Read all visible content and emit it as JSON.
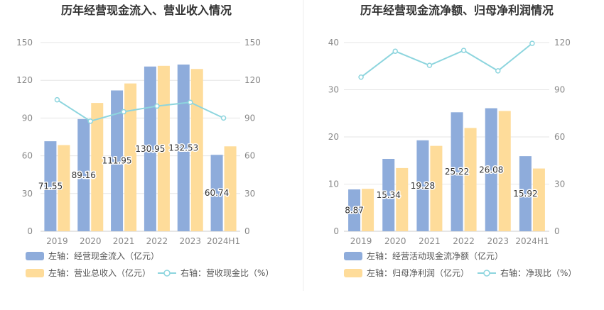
{
  "chart_data": [
    {
      "type": "bar",
      "title": "历年经营现金流入、营业收入情况",
      "categories": [
        "2019",
        "2020",
        "2021",
        "2022",
        "2023",
        "2024H1"
      ],
      "left_axis": {
        "ylim": [
          0,
          150
        ],
        "ticks": [
          0,
          30,
          60,
          90,
          120,
          150
        ]
      },
      "right_axis": {
        "ylim": [
          0,
          150
        ],
        "ticks": [
          0,
          30,
          60,
          90,
          120,
          150
        ]
      },
      "grid": true,
      "legend_position": "bottom",
      "series": [
        {
          "name": "左轴：经营现金流入（亿元）",
          "type": "bar",
          "axis": "left",
          "color": "#8eacdb",
          "values": [
            71.55,
            89.16,
            111.95,
            130.95,
            132.53,
            60.74
          ],
          "labels": [
            "71.55",
            "89.16",
            "111.95",
            "130.95",
            "132.53",
            "60.74"
          ]
        },
        {
          "name": "左轴：营业总收入（亿元）",
          "type": "bar",
          "axis": "left",
          "color": "#fedc9a",
          "values": [
            68.5,
            102.0,
            117.5,
            131.5,
            129.0,
            67.5
          ]
        },
        {
          "name": "右轴：营收现金比（%）",
          "type": "line",
          "axis": "right",
          "color": "#8dd5de",
          "values": [
            104.5,
            87.5,
            95.0,
            99.5,
            102.5,
            90.0
          ]
        }
      ]
    },
    {
      "type": "bar",
      "title": "历年经营现金流净额、归母净利润情况",
      "categories": [
        "2019",
        "2020",
        "2021",
        "2022",
        "2023",
        "2024H1"
      ],
      "left_axis": {
        "ylim": [
          0,
          40
        ],
        "ticks": [
          0,
          10,
          20,
          30,
          40
        ]
      },
      "right_axis": {
        "ylim": [
          0,
          120
        ],
        "ticks": [
          0,
          30,
          60,
          90,
          120
        ]
      },
      "grid": true,
      "legend_position": "bottom",
      "series": [
        {
          "name": "左轴：经营活动现金流净额（亿元）",
          "type": "bar",
          "axis": "left",
          "color": "#8eacdb",
          "values": [
            8.87,
            15.34,
            19.28,
            25.22,
            26.08,
            15.92
          ],
          "labels": [
            "8.87",
            "15.34",
            "19.28",
            "25.22",
            "26.08",
            "15.92"
          ]
        },
        {
          "name": "左轴：归母净利润（亿元）",
          "type": "bar",
          "axis": "left",
          "color": "#fedc9a",
          "values": [
            9.0,
            13.4,
            18.1,
            21.9,
            25.5,
            13.3
          ]
        },
        {
          "name": "右轴：净现比（%）",
          "type": "line",
          "axis": "right",
          "color": "#8dd5de",
          "values": [
            98.0,
            114.5,
            105.5,
            115.0,
            102.0,
            119.5
          ]
        }
      ]
    }
  ]
}
